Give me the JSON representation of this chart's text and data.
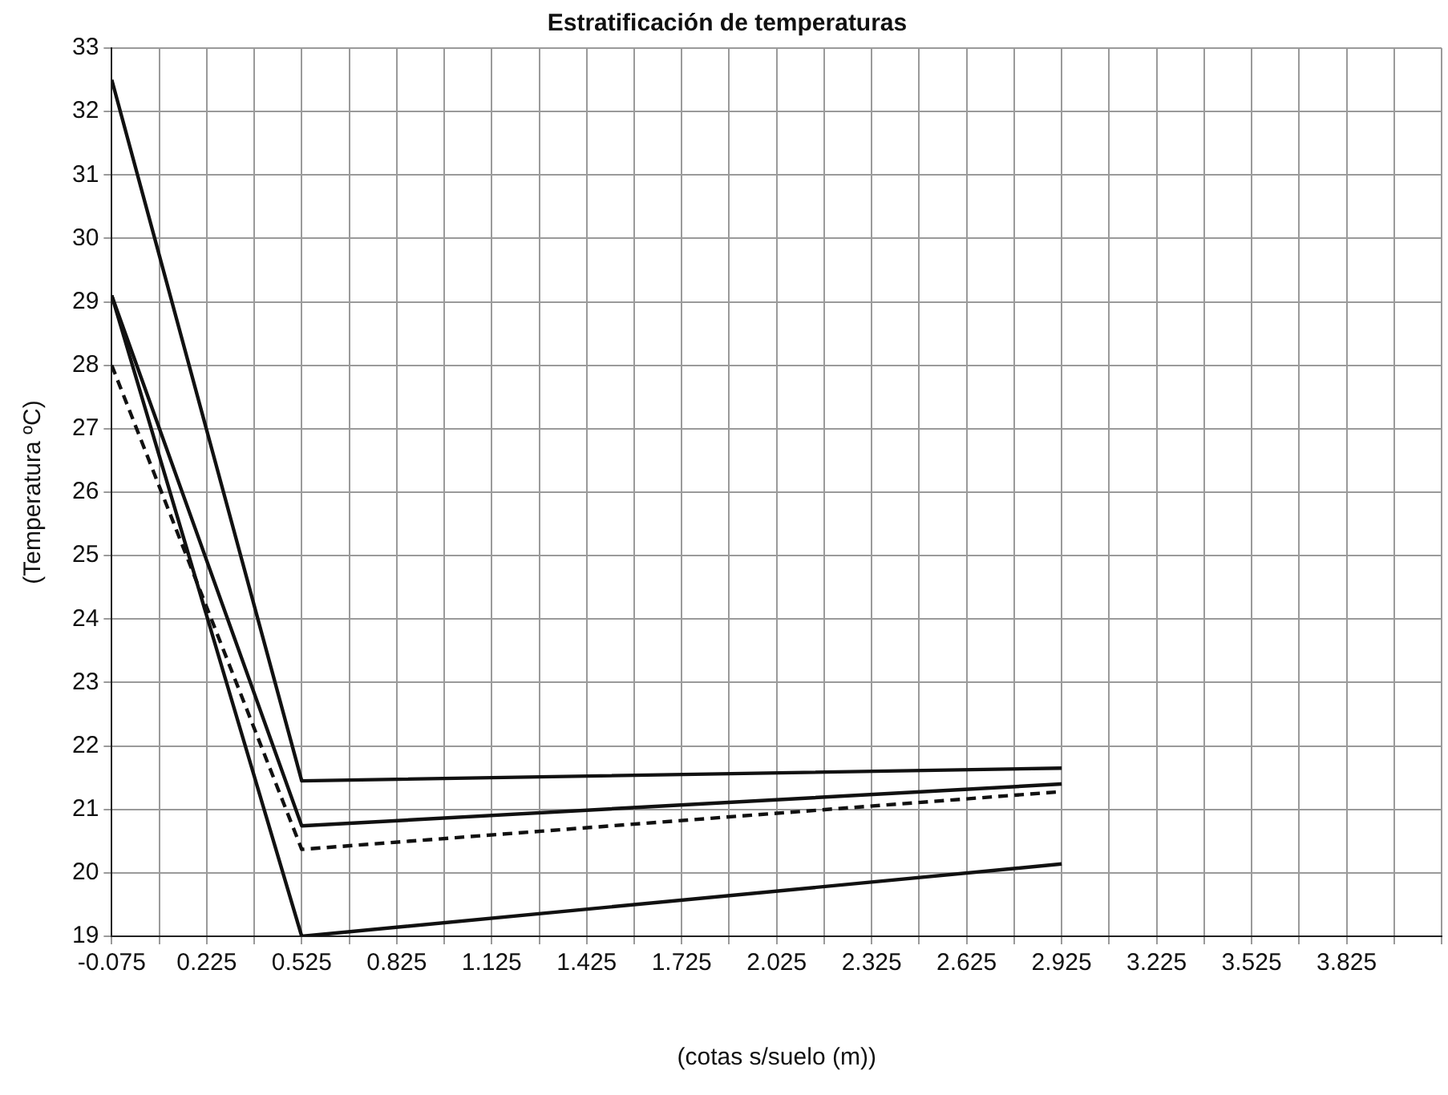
{
  "chart_data": {
    "type": "line",
    "title": "Estratificación de temperaturas",
    "xlabel": "(cotas s/suelo (m))",
    "ylabel": "(Temperatura ºC)",
    "x": [
      -0.075,
      0.525,
      2.925
    ],
    "series": [
      {
        "color": "#111111",
        "values": [
          32.5,
          21.45,
          21.65
        ]
      },
      {
        "color": "#111111",
        "values": [
          29.1,
          20.74,
          21.4
        ]
      },
      {
        "color": "#111111",
        "values": [
          28.0,
          20.37,
          21.28
        ],
        "line_style": "dashed"
      },
      {
        "color": "#111111",
        "values": [
          29.1,
          19.0,
          20.14
        ]
      }
    ],
    "xlim": [
      -0.075,
      4.125
    ],
    "xticks": [
      -0.075,
      {
        "value": 0.075,
        "label": null
      },
      0.225,
      {
        "value": 0.375,
        "label": null
      },
      0.525,
      {
        "value": 0.675,
        "label": null
      },
      0.825,
      {
        "value": 0.975,
        "label": null
      },
      1.125,
      {
        "value": 1.275,
        "label": null
      },
      1.425,
      {
        "value": 1.575,
        "label": null
      },
      1.725,
      {
        "value": 1.875,
        "label": null
      },
      2.025,
      {
        "value": 2.175,
        "label": null
      },
      2.325,
      {
        "value": 2.475,
        "label": null
      },
      2.625,
      {
        "value": 2.775,
        "label": null
      },
      2.925,
      {
        "value": 3.075,
        "label": null
      },
      3.225,
      {
        "value": 3.375,
        "label": null
      },
      3.525,
      {
        "value": 3.675,
        "label": null
      },
      3.825,
      {
        "value": 3.975,
        "label": null
      },
      {
        "value": 4.125,
        "label": null
      }
    ],
    "ylim": [
      19,
      33
    ],
    "yticks": [
      19,
      20,
      21,
      22,
      23,
      24,
      25,
      26,
      27,
      28,
      29,
      30,
      31,
      32,
      33
    ],
    "grid": true,
    "legend": false,
    "marker": "none",
    "line_style": "solid"
  }
}
